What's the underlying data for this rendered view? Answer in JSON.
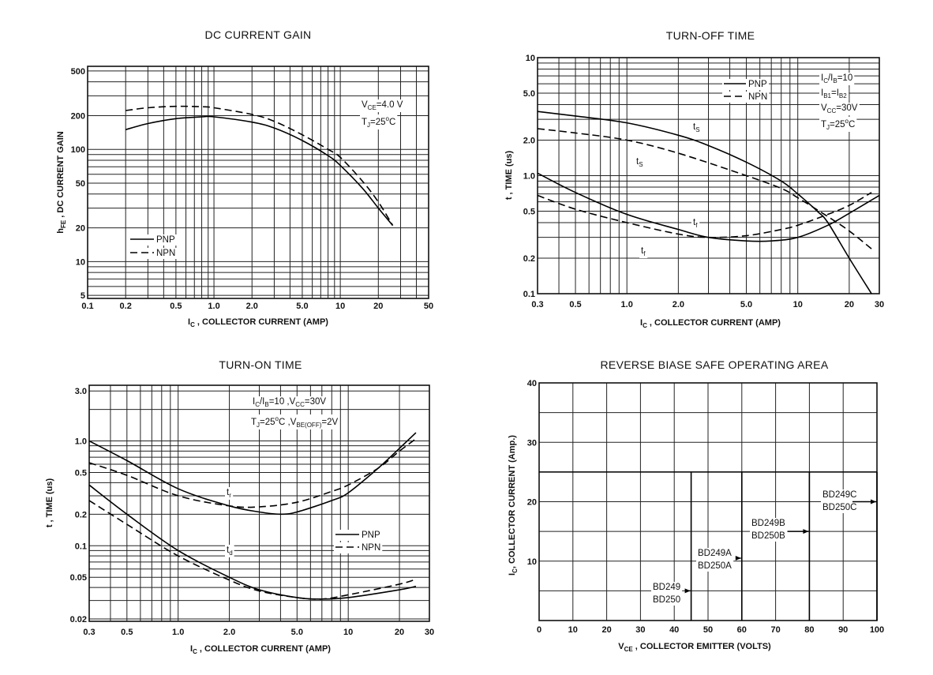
{
  "chart_data": [
    {
      "type": "line",
      "title": "DC CURRENT GAIN",
      "xlabel": [
        [
          "I",
          ""
        ],
        [
          "C",
          "sub"
        ],
        [
          " , COLLECTOR CURRENT (AMP)",
          ""
        ]
      ],
      "ylabel": [
        [
          "h",
          ""
        ],
        [
          "FE",
          "sub"
        ],
        [
          " , DC CURRENT GAIN",
          ""
        ]
      ],
      "xscale": "log",
      "yscale": "log",
      "xlim": [
        0.1,
        50
      ],
      "ylim": [
        4.7,
        550
      ],
      "xticks": [
        0.1,
        0.2,
        0.5,
        1,
        2,
        5,
        10,
        20,
        50
      ],
      "xtick_labels": [
        "0.1",
        "0.2",
        "0.5",
        "1.0",
        "2.0",
        "5.0",
        "10",
        "20",
        "50"
      ],
      "yticks": [
        5,
        10,
        20,
        50,
        100,
        200,
        500
      ],
      "ytick_labels": [
        "5",
        "10",
        "20",
        "50",
        "100",
        "200",
        "500"
      ],
      "grid": true,
      "legend_placement": "bottom-left",
      "series": [
        {
          "name": "PNP",
          "style": "solid",
          "x": [
            0.2,
            0.3,
            0.5,
            0.8,
            1.0,
            2.0,
            3.0,
            5.0,
            8.0,
            10,
            15,
            20,
            26
          ],
          "y": [
            150,
            170,
            188,
            195,
            195,
            175,
            155,
            120,
            88,
            72,
            45,
            30,
            21
          ]
        },
        {
          "name": "NPN",
          "style": "dashed",
          "x": [
            0.2,
            0.3,
            0.5,
            0.8,
            1.0,
            2.0,
            3.0,
            5.0,
            8.0,
            10,
            15,
            20,
            26
          ],
          "y": [
            222,
            235,
            242,
            240,
            235,
            205,
            178,
            135,
            100,
            85,
            52,
            34,
            21
          ]
        }
      ],
      "annotations": [
        [
          [
            "V",
            ""
          ],
          [
            "CE",
            "sub"
          ],
          [
            "=4.0 V",
            ""
          ]
        ],
        [
          [
            "T",
            ""
          ],
          [
            "J",
            "sub"
          ],
          [
            "=25",
            ""
          ],
          [
            "o",
            "sup"
          ],
          [
            "C",
            ""
          ]
        ]
      ]
    },
    {
      "type": "line",
      "title": "TURN-OFF  TIME",
      "xlabel": [
        [
          "I",
          ""
        ],
        [
          "C",
          "sub"
        ],
        [
          " , COLLECTOR CURRENT (AMP)",
          ""
        ]
      ],
      "ylabel": [
        [
          "t , TIME (us)",
          ""
        ]
      ],
      "xscale": "log",
      "yscale": "log",
      "xlim": [
        0.3,
        30
      ],
      "ylim": [
        0.1,
        10
      ],
      "xticks": [
        0.3,
        0.5,
        1,
        2,
        5,
        10,
        20,
        30
      ],
      "xtick_labels": [
        "0.3",
        "0.5",
        "1.0",
        "2.0",
        "5.0",
        "10",
        "20",
        "30"
      ],
      "yticks": [
        0.1,
        0.2,
        0.5,
        1,
        2,
        5,
        10
      ],
      "ytick_labels": [
        "0.1",
        "0.2",
        "0.5",
        "1.0",
        "2.0",
        "5.0",
        "10"
      ],
      "grid": true,
      "legend_placement": "top-right",
      "series": [
        {
          "name": "PNP",
          "curve": "ts",
          "style": "solid",
          "x": [
            0.3,
            0.5,
            1.0,
            2.0,
            3.0,
            5.0,
            8.0,
            10,
            13,
            15,
            20,
            27
          ],
          "y": [
            3.5,
            3.2,
            2.8,
            2.2,
            1.8,
            1.3,
            0.9,
            0.7,
            0.5,
            0.4,
            0.2,
            0.1
          ]
        },
        {
          "name": "NPN",
          "curve": "ts",
          "style": "dashed",
          "x": [
            0.3,
            0.5,
            1.0,
            2.0,
            5.0,
            8.0,
            10,
            15,
            20,
            27
          ],
          "y": [
            2.5,
            2.3,
            2.0,
            1.55,
            1.0,
            0.78,
            0.65,
            0.45,
            0.34,
            0.24
          ]
        },
        {
          "name": "PNP",
          "curve": "tf",
          "style": "solid",
          "x": [
            0.3,
            0.5,
            1.0,
            2.0,
            3.0,
            5.0,
            7.0,
            10,
            15,
            20,
            30
          ],
          "y": [
            1.05,
            0.72,
            0.47,
            0.35,
            0.3,
            0.28,
            0.28,
            0.3,
            0.38,
            0.48,
            0.68
          ]
        },
        {
          "name": "NPN",
          "curve": "tf",
          "style": "dashed",
          "x": [
            0.3,
            0.5,
            1.0,
            2.0,
            3.0,
            5.0,
            8.0,
            10,
            15,
            20,
            27
          ],
          "y": [
            0.68,
            0.52,
            0.4,
            0.32,
            0.3,
            0.31,
            0.35,
            0.38,
            0.47,
            0.56,
            0.72
          ]
        }
      ],
      "curve_labels": [
        [
          [
            "t",
            ""
          ],
          [
            "S",
            "sub"
          ]
        ],
        [
          [
            "t",
            ""
          ],
          [
            "S",
            "sub"
          ]
        ],
        [
          [
            "t",
            ""
          ],
          [
            "f",
            "sub"
          ]
        ],
        [
          [
            "t",
            ""
          ],
          [
            "f",
            "sub"
          ]
        ]
      ],
      "annotations": [
        [
          [
            "I",
            ""
          ],
          [
            "C",
            "sub"
          ],
          [
            "/I",
            ""
          ],
          [
            "B",
            "sub"
          ],
          [
            "=10",
            ""
          ]
        ],
        [
          [
            "I",
            ""
          ],
          [
            "B1",
            "sub"
          ],
          [
            "=I",
            ""
          ],
          [
            "B2",
            "sub"
          ]
        ],
        [
          [
            "V",
            ""
          ],
          [
            "CC",
            "sub"
          ],
          [
            "=30V",
            ""
          ]
        ],
        [
          [
            "T",
            ""
          ],
          [
            "J",
            "sub"
          ],
          [
            "=25",
            ""
          ],
          [
            "o",
            "sup"
          ],
          [
            "C",
            ""
          ]
        ]
      ]
    },
    {
      "type": "line",
      "title": "TURN-ON TIME",
      "xlabel": [
        [
          "I",
          ""
        ],
        [
          "C",
          "sub"
        ],
        [
          " , COLLECTOR CURRENT (AMP)",
          ""
        ]
      ],
      "ylabel": [
        [
          "t , TIME (us)",
          ""
        ]
      ],
      "xscale": "log",
      "yscale": "log",
      "xlim": [
        0.3,
        30
      ],
      "ylim": [
        0.019,
        3.4
      ],
      "xticks": [
        0.3,
        0.5,
        1,
        2,
        5,
        10,
        20,
        30
      ],
      "xtick_labels": [
        "0.3",
        "0.5",
        "1.0",
        "2.0",
        "5.0",
        "10",
        "20",
        "30"
      ],
      "yticks": [
        0.02,
        0.05,
        0.1,
        0.2,
        0.5,
        1,
        3
      ],
      "ytick_labels": [
        "0.02",
        "0.05",
        "0.1",
        "0.2",
        "0.5",
        "1.0",
        "3.0"
      ],
      "grid": true,
      "legend_placement": "center-right",
      "series": [
        {
          "name": "PNP",
          "curve": "tr",
          "style": "solid",
          "x": [
            0.3,
            0.5,
            1.0,
            2.0,
            3.0,
            4.0,
            5.0,
            8.0,
            10,
            15,
            20,
            25
          ],
          "y": [
            1.0,
            0.65,
            0.35,
            0.24,
            0.21,
            0.2,
            0.21,
            0.27,
            0.32,
            0.55,
            0.85,
            1.2
          ]
        },
        {
          "name": "NPN",
          "curve": "tr",
          "style": "dashed",
          "x": [
            0.3,
            0.5,
            1.0,
            2.0,
            3.0,
            5.0,
            8.0,
            10,
            15,
            20,
            25
          ],
          "y": [
            0.62,
            0.47,
            0.3,
            0.24,
            0.235,
            0.26,
            0.33,
            0.38,
            0.55,
            0.8,
            1.05
          ]
        },
        {
          "name": "PNP",
          "curve": "td",
          "style": "solid",
          "x": [
            0.3,
            0.5,
            1.0,
            2.0,
            3.0,
            5.0,
            7.0,
            10,
            20,
            25
          ],
          "y": [
            0.38,
            0.2,
            0.09,
            0.05,
            0.038,
            0.032,
            0.031,
            0.032,
            0.038,
            0.041
          ]
        },
        {
          "name": "NPN",
          "curve": "td",
          "style": "dashed",
          "x": [
            0.3,
            0.5,
            1.0,
            2.0,
            3.0,
            5.0,
            7.0,
            10,
            20,
            25
          ],
          "y": [
            0.27,
            0.16,
            0.08,
            0.047,
            0.037,
            0.032,
            0.031,
            0.034,
            0.043,
            0.048
          ]
        }
      ],
      "curve_labels": [
        [
          [
            "t",
            ""
          ],
          [
            "r",
            "sub"
          ]
        ],
        [
          [
            "t",
            ""
          ],
          [
            "d",
            "sub"
          ]
        ]
      ],
      "annotations": [
        [
          [
            "I",
            ""
          ],
          [
            "C",
            "sub"
          ],
          [
            "/I",
            ""
          ],
          [
            "B",
            "sub"
          ],
          [
            "=10 ,V",
            ""
          ],
          [
            "CC",
            "sub"
          ],
          [
            "=30V",
            ""
          ]
        ],
        [
          [
            "T",
            ""
          ],
          [
            "J",
            "sub"
          ],
          [
            "=25",
            ""
          ],
          [
            "o",
            "sup"
          ],
          [
            "C ,V",
            ""
          ],
          [
            "BE(OFF)",
            "sub"
          ],
          [
            "=2V",
            ""
          ]
        ]
      ]
    },
    {
      "type": "area",
      "title": "REVERSE BIASE SAFE OPERATING AREA",
      "xlabel": [
        [
          "V",
          ""
        ],
        [
          "CE",
          "sub"
        ],
        [
          " , COLLECTOR EMITTER (VOLTS)",
          ""
        ]
      ],
      "ylabel": [
        [
          "I",
          ""
        ],
        [
          "C",
          "sub"
        ],
        [
          ", COLLECTOR  CURRENT (Amp.)",
          ""
        ]
      ],
      "xscale": "linear",
      "yscale": "linear",
      "xlim": [
        0,
        100
      ],
      "ylim": [
        0,
        40
      ],
      "xticks": [
        0,
        10,
        20,
        30,
        40,
        50,
        60,
        70,
        80,
        90,
        100
      ],
      "xtick_labels": [
        "0",
        "10",
        "20",
        "30",
        "40",
        "50",
        "60",
        "70",
        "80",
        "90",
        "100"
      ],
      "yticks": [
        10,
        20,
        30,
        40
      ],
      "ytick_labels": [
        "10",
        "20",
        "30",
        "40"
      ],
      "grid": true,
      "series": [
        {
          "name": "BD249 / BD250",
          "lines": [
            "BD249",
            "BD250"
          ],
          "vce_max": 45,
          "ic_max": 25,
          "arrow_ic": 5
        },
        {
          "name": "BD249A / BD250A",
          "lines": [
            "BD249A",
            "BD250A"
          ],
          "vce_max": 60,
          "ic_max": 25,
          "arrow_ic": 10.5
        },
        {
          "name": "BD249B / BD250B",
          "lines": [
            "BD249B",
            "BD250B"
          ],
          "vce_max": 80,
          "ic_max": 25,
          "arrow_ic": 15
        },
        {
          "name": "BD249C / BD250C",
          "lines": [
            "BD249C",
            "BD250C"
          ],
          "vce_max": 100,
          "ic_max": 25,
          "arrow_ic": 20
        }
      ]
    }
  ]
}
